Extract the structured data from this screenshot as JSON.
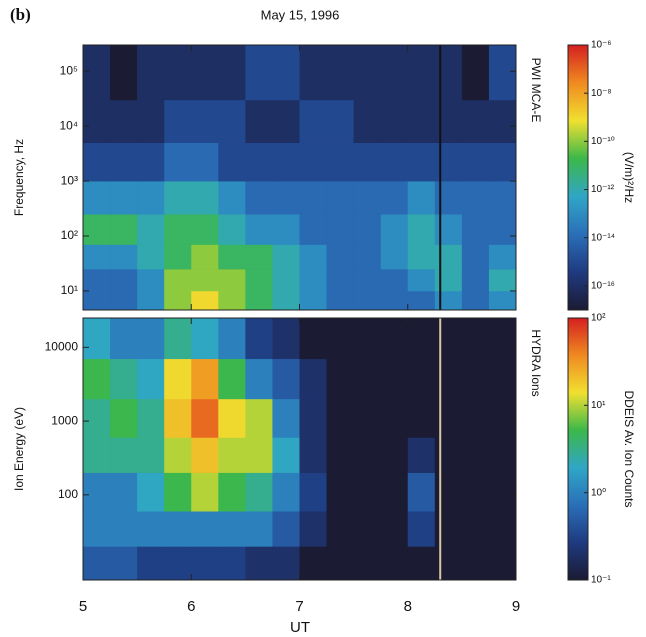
{
  "panel_label": "(b)",
  "chart_data": [
    {
      "type": "heatmap",
      "title": "May 15, 1996",
      "ylabel": "Frequency, Hz",
      "panel_name": "PWI MCA-E",
      "colorbar_label": "(V/m)²/Hz",
      "xlim": [
        5,
        9
      ],
      "xticks": [
        5,
        6,
        7,
        8,
        9
      ],
      "ylim": [
        4.5,
        300000
      ],
      "yscale": "log",
      "yticks": [
        {
          "value": 10,
          "label": "10¹"
        },
        {
          "value": 100,
          "label": "10²"
        },
        {
          "value": 1000,
          "label": "10³"
        },
        {
          "value": 10000,
          "label": "10⁴"
        },
        {
          "value": 100000,
          "label": "10⁵"
        }
      ],
      "zlim": [
        1e-17,
        1e-06
      ],
      "zscale": "log",
      "zticks": [
        {
          "value": 1e-06,
          "label": "10⁻⁶"
        },
        {
          "value": 1e-08,
          "label": "10⁻⁸"
        },
        {
          "value": 1e-10,
          "label": "10⁻¹⁰"
        },
        {
          "value": 1e-12,
          "label": "10⁻¹²"
        },
        {
          "value": 1e-14,
          "label": "10⁻¹⁴"
        },
        {
          "value": 1e-16,
          "label": "10⁻¹⁶"
        }
      ],
      "colormap": [
        "#1b1b33",
        "#1f3a80",
        "#2a6fb8",
        "#30a6c6",
        "#3cb84a",
        "#f0e030",
        "#f08a20",
        "#d42020"
      ],
      "xbins": [
        5,
        5.25,
        5.5,
        5.75,
        6,
        6.25,
        6.5,
        6.75,
        7,
        7.25,
        7.5,
        7.75,
        8,
        8.25,
        8.5,
        8.75,
        9
      ],
      "ybins": [
        4.5,
        10,
        25,
        70,
        250,
        1000,
        5000,
        30000,
        300000
      ],
      "z": [
        [
          1e-14,
          1e-14,
          1e-13,
          1e-10,
          1e-09,
          1e-10,
          1e-11,
          1e-12,
          1e-13,
          1e-14,
          1e-14,
          1e-14,
          1e-14,
          1e-13,
          1e-14,
          1e-13
        ],
        [
          1e-14,
          1e-14,
          1e-13,
          1e-10,
          1e-10,
          1e-10,
          1e-11,
          1e-12,
          1e-13,
          1e-14,
          1e-14,
          1e-14,
          1e-13,
          1e-12,
          1e-14,
          1e-12
        ],
        [
          1e-13,
          1e-13,
          1e-12,
          1e-11,
          1e-10,
          1e-11,
          1e-11,
          1e-12,
          1e-13,
          1e-14,
          1e-14,
          1e-13,
          1e-12,
          1e-12,
          1e-14,
          1e-13
        ],
        [
          1e-11,
          1e-11,
          1e-12,
          1e-11,
          1e-11,
          1e-12,
          1e-13,
          1e-13,
          1e-14,
          1e-14,
          1e-14,
          1e-13,
          1e-12,
          1e-13,
          1e-14,
          1e-14
        ],
        [
          1e-13,
          1e-13,
          1e-13,
          1e-12,
          1e-12,
          1e-13,
          1e-14,
          1e-14,
          1e-14,
          1e-14,
          1e-14,
          1e-14,
          1e-13,
          1e-14,
          1e-14,
          1e-14
        ],
        [
          1e-15,
          1e-15,
          1e-15,
          1e-14,
          1e-14,
          1e-15,
          1e-15,
          1e-15,
          1e-15,
          1e-15,
          1e-15,
          1e-15,
          1e-15,
          1e-15,
          1e-15,
          1e-15
        ],
        [
          1e-16,
          1e-16,
          1e-16,
          1e-15,
          1e-15,
          1e-15,
          1e-16,
          1e-16,
          1e-15,
          1e-15,
          1e-16,
          1e-16,
          1e-16,
          1e-16,
          1e-16,
          1e-16
        ],
        [
          1e-16,
          1e-17,
          1e-16,
          1e-16,
          1e-16,
          1e-16,
          1e-15,
          1e-15,
          1e-16,
          1e-16,
          1e-16,
          1e-16,
          1e-16,
          1e-16,
          1e-17,
          1e-15
        ]
      ],
      "vline": 8.3,
      "vline_color": "#111111"
    },
    {
      "type": "heatmap",
      "xlabel": "UT",
      "ylabel": "Ion Energy (eV)",
      "panel_name": "HYDRA Ions",
      "colorbar_label": "DDEIS Av. Ion Counts",
      "xlim": [
        5,
        9
      ],
      "xticks": [
        5,
        6,
        7,
        8,
        9
      ],
      "ylim": [
        7,
        25000
      ],
      "yscale": "log",
      "yticks": [
        100,
        1000,
        10000
      ],
      "zlim": [
        0.1,
        100
      ],
      "zscale": "log",
      "zticks": [
        {
          "value": 100,
          "label": "10²"
        },
        {
          "value": 10,
          "label": "10¹"
        },
        {
          "value": 1,
          "label": "10⁰"
        },
        {
          "value": 0.1,
          "label": "10⁻¹"
        }
      ],
      "colormap": [
        "#1b1b33",
        "#1f3a80",
        "#2a6fb8",
        "#30a6c6",
        "#3cb84a",
        "#f0e030",
        "#f08a20",
        "#d42020"
      ],
      "xbins": [
        5,
        5.25,
        5.5,
        5.75,
        6,
        6.25,
        6.5,
        6.75,
        7,
        7.25,
        7.5,
        7.75,
        8,
        8.25,
        8.5,
        8.75,
        9
      ],
      "ybins": [
        7,
        20,
        60,
        200,
        600,
        2000,
        7000,
        25000
      ],
      "z": [
        [
          0.5,
          0.5,
          0.3,
          0.3,
          0.3,
          0.3,
          0.2,
          0.2,
          0.1,
          0.1,
          0.1,
          0.1,
          0.1,
          0.1,
          0.1,
          0.1
        ],
        [
          1,
          1,
          1,
          1,
          1,
          1,
          1,
          0.5,
          0.2,
          0.1,
          0.1,
          0.1,
          0.3,
          0.1,
          0.1,
          0.1
        ],
        [
          1,
          1,
          2,
          5,
          10,
          5,
          3,
          1,
          0.3,
          0.1,
          0.1,
          0.1,
          0.5,
          0.1,
          0.1,
          0.1
        ],
        [
          3,
          3,
          3,
          10,
          20,
          10,
          10,
          2,
          0.2,
          0.1,
          0.1,
          0.1,
          0.2,
          0.1,
          0.1,
          0.1
        ],
        [
          3,
          5,
          3,
          20,
          50,
          15,
          10,
          1,
          0.2,
          0.1,
          0.1,
          0.1,
          0.1,
          0.1,
          0.1,
          0.1
        ],
        [
          5,
          3,
          2,
          15,
          30,
          5,
          1,
          0.5,
          0.2,
          0.1,
          0.1,
          0.1,
          0.1,
          0.1,
          0.1,
          0.1
        ],
        [
          2,
          1,
          1,
          3,
          2,
          1,
          0.3,
          0.2,
          0.1,
          0.1,
          0.1,
          0.1,
          0.1,
          0.1,
          0.1,
          0.1
        ]
      ],
      "vline": 8.3,
      "vline_color": "#d8c8a0"
    }
  ]
}
